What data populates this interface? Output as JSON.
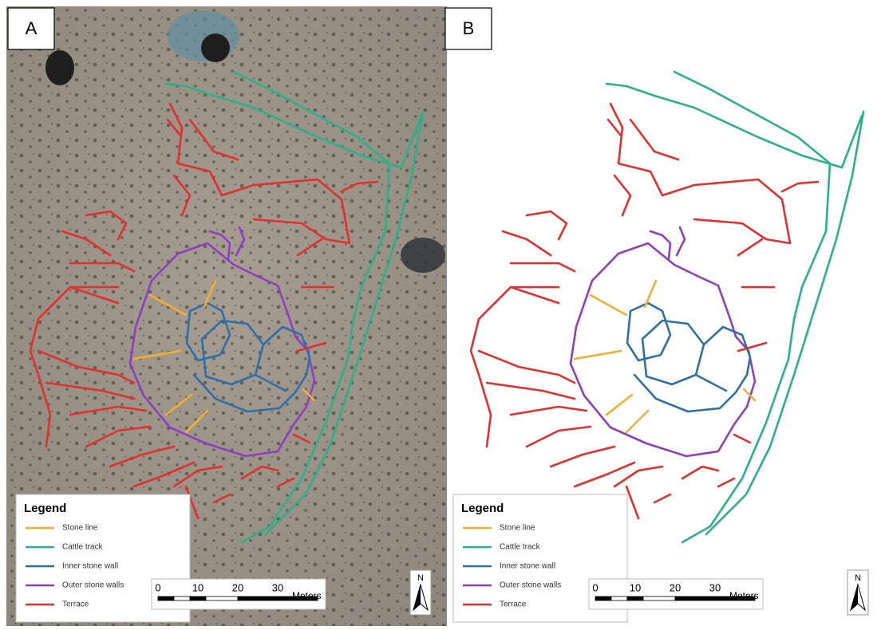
{
  "panels": [
    {
      "label": "A",
      "legend": {
        "title": "Legend",
        "items": [
          {
            "label": "Stone line",
            "color": "#f0b030"
          },
          {
            "label": "Cattle track",
            "color": "#2bb08a"
          },
          {
            "label": "Inner stone wall",
            "color": "#2f6fa8"
          },
          {
            "label": "Outer stone walls",
            "color": "#8e3fbf"
          },
          {
            "label": "Terrace",
            "color": "#e03030"
          }
        ]
      },
      "scale_bar": {
        "ticks": [
          "0",
          "10",
          "20",
          "30"
        ],
        "unit": "Meters"
      },
      "north": "N"
    },
    {
      "label": "B",
      "legend": {
        "title": "Legend",
        "items": [
          {
            "label": "Stone line",
            "color": "#f0b030"
          },
          {
            "label": "Cattle track",
            "color": "#2bb08a"
          },
          {
            "label": "Inner stone wall",
            "color": "#2f6fa8"
          },
          {
            "label": "Outer stone walls",
            "color": "#8e3fbf"
          },
          {
            "label": "Terrace",
            "color": "#e03030"
          }
        ]
      },
      "scale_bar": {
        "ticks": [
          "0",
          "10",
          "20",
          "30"
        ],
        "unit": "Meters"
      },
      "north": "N"
    }
  ]
}
